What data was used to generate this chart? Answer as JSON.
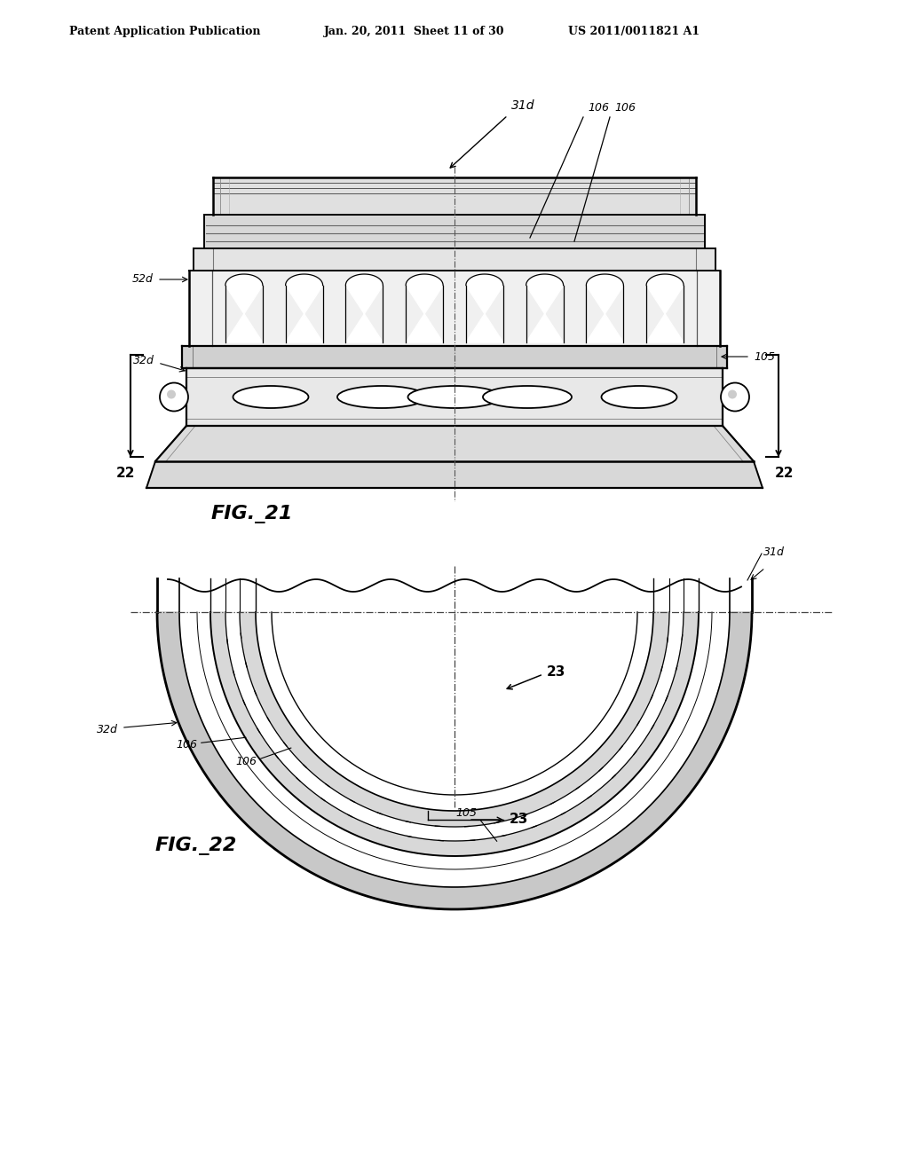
{
  "bg_color": "#ffffff",
  "header_text": "Patent Application Publication",
  "header_date": "Jan. 20, 2011  Sheet 11 of 30",
  "header_patent": "US 2011/0011821 A1",
  "fig21_label": "FIG._21",
  "fig22_label": "FIG._22",
  "line_color": "#000000"
}
